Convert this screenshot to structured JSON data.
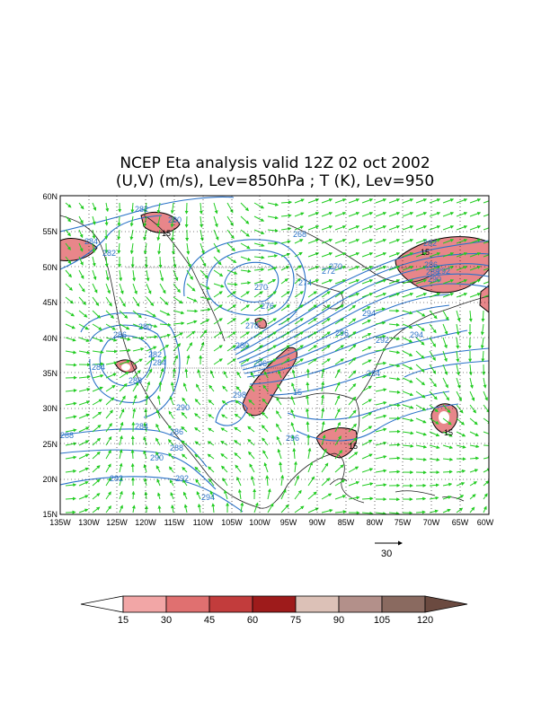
{
  "title_line1": "NCEP Eta analysis valid 12Z 02 oct 2002",
  "title_line2": "(U,V) (m/s), Lev=850hPa ; T (K), Lev=950",
  "lat_labels": [
    "60N",
    "55N",
    "50N",
    "45N",
    "40N",
    "35N",
    "30N",
    "25N",
    "20N",
    "15N"
  ],
  "lon_labels": [
    "135W",
    "130W",
    "125W",
    "120W",
    "115W",
    "110W",
    "105W",
    "100W",
    "95W",
    "90W",
    "85W",
    "80W",
    "75W",
    "70W",
    "65W",
    "60W"
  ],
  "reference_vector": {
    "label": "30"
  },
  "colorbar": {
    "labels": [
      "15",
      "30",
      "45",
      "60",
      "75",
      "90",
      "105",
      "120"
    ],
    "colors": [
      "#ffffff",
      "#f2a6a6",
      "#e07070",
      "#c23c3c",
      "#9e1b1b",
      "#dcc1b7",
      "#b3908a",
      "#8a6a60",
      "#6b4a40"
    ]
  },
  "contour_labels": [
    "282",
    "280",
    "284",
    "282",
    "268",
    "270",
    "272",
    "274",
    "270",
    "276",
    "278",
    "280",
    "282",
    "286",
    "288",
    "290",
    "292",
    "294",
    "296",
    "294",
    "292",
    "294",
    "296",
    "298",
    "280",
    "282",
    "284",
    "286",
    "288",
    "284",
    "290",
    "284",
    "286",
    "288",
    "290",
    "292",
    "292",
    "294",
    "296",
    "288",
    "15",
    "15",
    "15",
    "15",
    "15"
  ],
  "colors": {
    "contour": "#2a72c8",
    "vector": "#22cc22",
    "coast": "#202020"
  }
}
